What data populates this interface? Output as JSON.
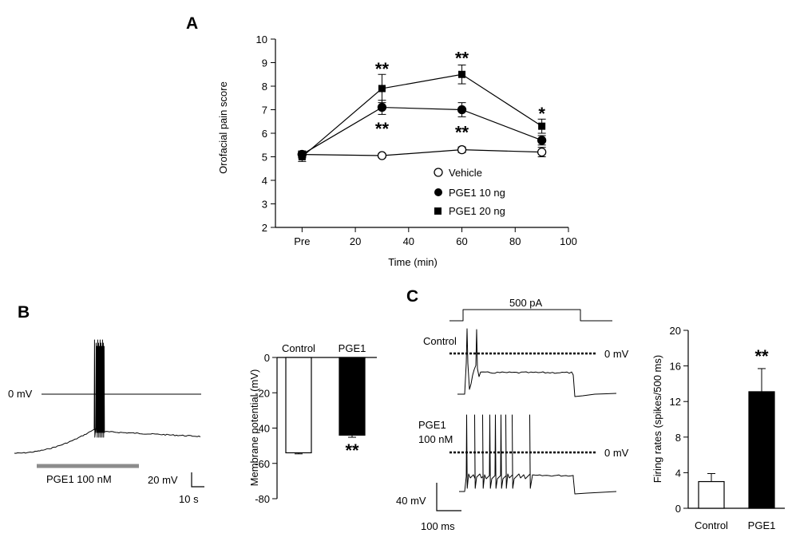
{
  "panels": {
    "A": "A",
    "B": "B",
    "C": "C"
  },
  "chart_data": [
    {
      "id": "A",
      "type": "line",
      "title": "",
      "xlabel": "Time (min)",
      "ylabel": "Orofacial pain score",
      "xlim": [
        -10,
        100
      ],
      "ylim": [
        2,
        10
      ],
      "x_ticks": [
        0,
        20,
        40,
        60,
        80,
        100
      ],
      "x_tick_labels": [
        "Pre",
        "20",
        "40",
        "60",
        "80",
        "100"
      ],
      "y_ticks": [
        2,
        3,
        4,
        5,
        6,
        7,
        8,
        9,
        10
      ],
      "y_tick_labels": [
        "2",
        "3",
        "4",
        "5",
        "6",
        "7",
        "8",
        "9",
        "10"
      ],
      "x": [
        0,
        30,
        60,
        90
      ],
      "series": [
        {
          "name": "Vehicle",
          "marker": "open-circle",
          "values": [
            5.1,
            5.05,
            5.3,
            5.2
          ],
          "errors": [
            0.12,
            0.08,
            0.12,
            0.2
          ]
        },
        {
          "name": "PGE1 10 ng",
          "marker": "filled-circle",
          "values": [
            5.1,
            7.1,
            7.0,
            5.7
          ],
          "errors": [
            0.15,
            0.3,
            0.3,
            0.2
          ]
        },
        {
          "name": "PGE1 20 ng",
          "marker": "filled-square",
          "values": [
            5.0,
            7.9,
            8.5,
            6.3
          ],
          "errors": [
            0.2,
            0.6,
            0.4,
            0.3
          ]
        }
      ],
      "annotations": [
        {
          "text": "**",
          "x": 30,
          "y": 8.75
        },
        {
          "text": "**",
          "x": 30,
          "y": 6.2
        },
        {
          "text": "**",
          "x": 60,
          "y": 9.2
        },
        {
          "text": "**",
          "x": 60,
          "y": 6.05
        },
        {
          "text": "*",
          "x": 90,
          "y": 6.85
        }
      ],
      "legend": "bottom-right"
    },
    {
      "id": "B-bar",
      "type": "bar",
      "categories": [
        "Control",
        "PGE1"
      ],
      "values": [
        -54,
        -44
      ],
      "errors": [
        0.6,
        1.2
      ],
      "fills": [
        "#ffffff",
        "#000000"
      ],
      "ylabel": "Membrane potential (mV)",
      "ylim": [
        -80,
        0
      ],
      "y_ticks": [
        0,
        -20,
        -40,
        -60,
        -80
      ],
      "y_tick_labels": [
        "0",
        "-20",
        "-40",
        "-60",
        "-80"
      ],
      "annotations": [
        {
          "text": "**",
          "category": "PGE1"
        }
      ]
    },
    {
      "id": "C-bar",
      "type": "bar",
      "categories": [
        "Control",
        "PGE1"
      ],
      "values": [
        3.0,
        13.1
      ],
      "errors": [
        0.9,
        2.6
      ],
      "fills": [
        "#ffffff",
        "#000000"
      ],
      "ylabel": "Firing rates (spikes/500 ms)",
      "ylim": [
        0,
        20
      ],
      "y_ticks": [
        0,
        4,
        8,
        12,
        16,
        20
      ],
      "y_tick_labels": [
        "0",
        "4",
        "8",
        "12",
        "16",
        "20"
      ],
      "annotations": [
        {
          "text": "**",
          "category": "PGE1"
        }
      ]
    }
  ],
  "traceB": {
    "zero_label": "0 mV",
    "drug_label": "PGE1 100 nM",
    "scale_v": "20 mV",
    "scale_t": "10 s"
  },
  "traceC": {
    "step_label": "500 pA",
    "control_label": "Control",
    "pge1_label_1": "PGE1",
    "pge1_label_2": "100  nM",
    "zero_label": "0 mV",
    "scale_v": "40 mV",
    "scale_t": "100 ms"
  },
  "colors": {
    "bar_drug": "#000000",
    "bar_control": "#ffffff",
    "drug_bar": "#8c8c8c"
  }
}
